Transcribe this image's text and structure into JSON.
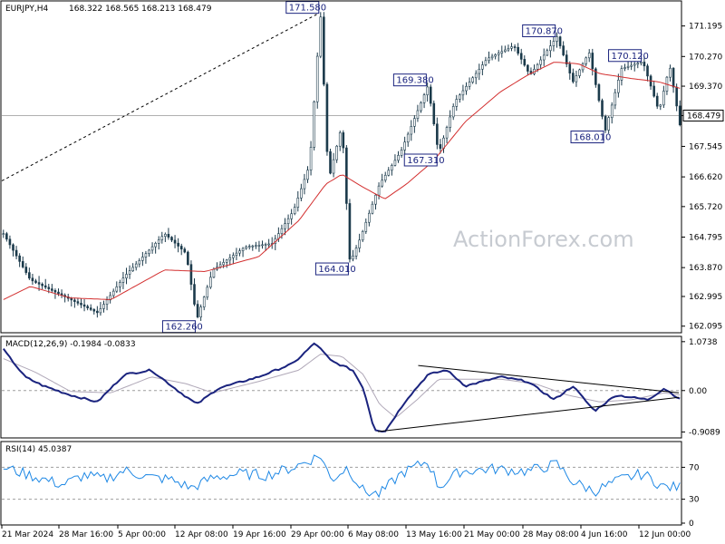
{
  "header": {
    "symbol": "EURJPY,H4",
    "ohlc": "168.322 168.565 168.213 168.479",
    "macd_label": "MACD(12,26,9) -0.1984 -0.0833",
    "rsi_label": "RSI(14) 45.0387"
  },
  "watermark": "ActionForex.com",
  "colors": {
    "candles": "#1b3a4b",
    "ma": "#d32f2f",
    "macd": "#1a237e",
    "signal": "#b0a8b8",
    "rsi": "#1e88e5",
    "label_border": "#1a237e",
    "grid_dashed": "#9e9e9e"
  },
  "chart_data": [
    {
      "type": "candlestick",
      "title": "EURJPY,H4",
      "x_ticks": [
        "21 Mar 2024",
        "28 Mar 16:00",
        "5 Apr 00:00",
        "12 Apr 08:00",
        "19 Apr 16:00",
        "29 Apr 00:00",
        "6 May 08:00",
        "13 May 16:00",
        "21 May 00:00",
        "28 May 08:00",
        "4 Jun 16:00",
        "12 Jun 00:00"
      ],
      "y_ticks": [
        "171.195",
        "170.270",
        "169.370",
        "168.479",
        "167.545",
        "166.620",
        "165.720",
        "164.795",
        "163.870",
        "162.995",
        "162.095"
      ],
      "ylim": [
        161.95,
        171.9
      ],
      "current_price": 168.479,
      "bars": 210,
      "price_path": [
        [
          0,
          164.9
        ],
        [
          10,
          163.5
        ],
        [
          20,
          163.1
        ],
        [
          35,
          162.5
        ],
        [
          45,
          163.6
        ],
        [
          60,
          164.9
        ],
        [
          68,
          164.3
        ],
        [
          72,
          162.3
        ],
        [
          78,
          163.8
        ],
        [
          90,
          164.5
        ],
        [
          100,
          164.6
        ],
        [
          108,
          165.6
        ],
        [
          114,
          167.0
        ],
        [
          118,
          171.58
        ],
        [
          121,
          166.5
        ],
        [
          126,
          168.2
        ],
        [
          129,
          164.0
        ],
        [
          133,
          164.8
        ],
        [
          140,
          166.4
        ],
        [
          148,
          167.4
        ],
        [
          158,
          169.38
        ],
        [
          162,
          167.31
        ],
        [
          168,
          168.9
        ],
        [
          180,
          170.2
        ],
        [
          190,
          170.6
        ],
        [
          196,
          169.7
        ],
        [
          206,
          170.87
        ],
        [
          212,
          169.5
        ],
        [
          218,
          170.4
        ],
        [
          224,
          168.01
        ],
        [
          230,
          169.9
        ],
        [
          238,
          170.12
        ],
        [
          244,
          168.6
        ],
        [
          248,
          170.0
        ],
        [
          252,
          168.1
        ]
      ],
      "ma_path": [
        [
          0,
          162.9
        ],
        [
          10,
          163.3
        ],
        [
          25,
          162.95
        ],
        [
          40,
          162.9
        ],
        [
          60,
          163.8
        ],
        [
          75,
          163.75
        ],
        [
          95,
          164.2
        ],
        [
          110,
          165.3
        ],
        [
          120,
          166.4
        ],
        [
          126,
          166.7
        ],
        [
          134,
          166.3
        ],
        [
          142,
          165.95
        ],
        [
          150,
          166.4
        ],
        [
          160,
          167.1
        ],
        [
          172,
          168.3
        ],
        [
          185,
          169.2
        ],
        [
          195,
          169.7
        ],
        [
          205,
          170.1
        ],
        [
          214,
          170.05
        ],
        [
          222,
          169.75
        ],
        [
          234,
          169.6
        ],
        [
          244,
          169.5
        ],
        [
          252,
          169.3
        ]
      ],
      "annotations": [
        {
          "label": "171.580",
          "value": 171.58,
          "bar": 118
        },
        {
          "label": "170.870",
          "value": 170.87,
          "bar": 206
        },
        {
          "label": "170.120",
          "value": 170.12,
          "bar": 238
        },
        {
          "label": "169.380",
          "value": 169.38,
          "bar": 158
        },
        {
          "label": "168.010",
          "value": 168.01,
          "bar": 224
        },
        {
          "label": "167.310",
          "value": 167.31,
          "bar": 162
        },
        {
          "label": "164.010",
          "value": 164.01,
          "bar": 129
        },
        {
          "label": "162.260",
          "value": 162.26,
          "bar": 72
        }
      ]
    },
    {
      "type": "line",
      "title": "MACD(12,26,9) -0.1984 -0.0833",
      "y_ticks": [
        "1.0738",
        "0.00",
        "-0.9089"
      ],
      "ylim": [
        -1.0,
        1.15
      ],
      "macd_value": -0.1984,
      "signal_value": -0.0833,
      "macd_path": [
        [
          0,
          0.9
        ],
        [
          8,
          0.3
        ],
        [
          15,
          0.1
        ],
        [
          25,
          -0.1
        ],
        [
          35,
          -0.25
        ],
        [
          45,
          0.35
        ],
        [
          55,
          0.45
        ],
        [
          66,
          -0.05
        ],
        [
          72,
          -0.3
        ],
        [
          80,
          0.05
        ],
        [
          95,
          0.3
        ],
        [
          108,
          0.6
        ],
        [
          116,
          1.05
        ],
        [
          122,
          0.65
        ],
        [
          130,
          0.45
        ],
        [
          134,
          0.05
        ],
        [
          138,
          -0.85
        ],
        [
          142,
          -0.9
        ],
        [
          150,
          -0.2
        ],
        [
          158,
          0.35
        ],
        [
          165,
          0.45
        ],
        [
          172,
          0.1
        ],
        [
          185,
          0.3
        ],
        [
          195,
          0.2
        ],
        [
          205,
          -0.2
        ],
        [
          212,
          0.1
        ],
        [
          220,
          -0.45
        ],
        [
          228,
          -0.1
        ],
        [
          240,
          -0.2
        ],
        [
          246,
          0.05
        ],
        [
          252,
          -0.2
        ]
      ],
      "signal_path": [
        [
          0,
          0.7
        ],
        [
          12,
          0.4
        ],
        [
          25,
          -0.02
        ],
        [
          40,
          -0.05
        ],
        [
          55,
          0.3
        ],
        [
          68,
          0.15
        ],
        [
          78,
          -0.05
        ],
        [
          95,
          0.2
        ],
        [
          110,
          0.45
        ],
        [
          118,
          0.8
        ],
        [
          126,
          0.75
        ],
        [
          134,
          0.35
        ],
        [
          140,
          -0.3
        ],
        [
          146,
          -0.6
        ],
        [
          154,
          -0.2
        ],
        [
          162,
          0.25
        ],
        [
          172,
          0.25
        ],
        [
          185,
          0.25
        ],
        [
          198,
          0.15
        ],
        [
          210,
          -0.1
        ],
        [
          222,
          -0.25
        ],
        [
          234,
          -0.2
        ],
        [
          246,
          -0.05
        ],
        [
          252,
          -0.1
        ]
      ],
      "trendlines": [
        [
          [
            155,
            0.55
          ],
          [
            252,
            -0.05
          ]
        ],
        [
          [
            140,
            -0.9
          ],
          [
            252,
            -0.15
          ]
        ]
      ]
    },
    {
      "type": "line",
      "title": "RSI(14) 45.0387",
      "y_ticks": [
        "70",
        "30",
        "0"
      ],
      "ylim": [
        0,
        100
      ],
      "rsi_value": 45.0387,
      "rsi_path": [
        [
          0,
          70
        ],
        [
          8,
          62
        ],
        [
          15,
          55
        ],
        [
          22,
          48
        ],
        [
          30,
          60
        ],
        [
          38,
          55
        ],
        [
          45,
          66
        ],
        [
          55,
          57
        ],
        [
          62,
          55
        ],
        [
          70,
          44
        ],
        [
          78,
          57
        ],
        [
          88,
          62
        ],
        [
          98,
          60
        ],
        [
          108,
          70
        ],
        [
          118,
          85
        ],
        [
          122,
          54
        ],
        [
          128,
          70
        ],
        [
          134,
          40
        ],
        [
          140,
          36
        ],
        [
          148,
          62
        ],
        [
          158,
          78
        ],
        [
          162,
          45
        ],
        [
          170,
          65
        ],
        [
          182,
          68
        ],
        [
          195,
          65
        ],
        [
          206,
          74
        ],
        [
          212,
          52
        ],
        [
          220,
          40
        ],
        [
          230,
          55
        ],
        [
          238,
          62
        ],
        [
          246,
          45
        ],
        [
          252,
          45
        ]
      ]
    }
  ]
}
